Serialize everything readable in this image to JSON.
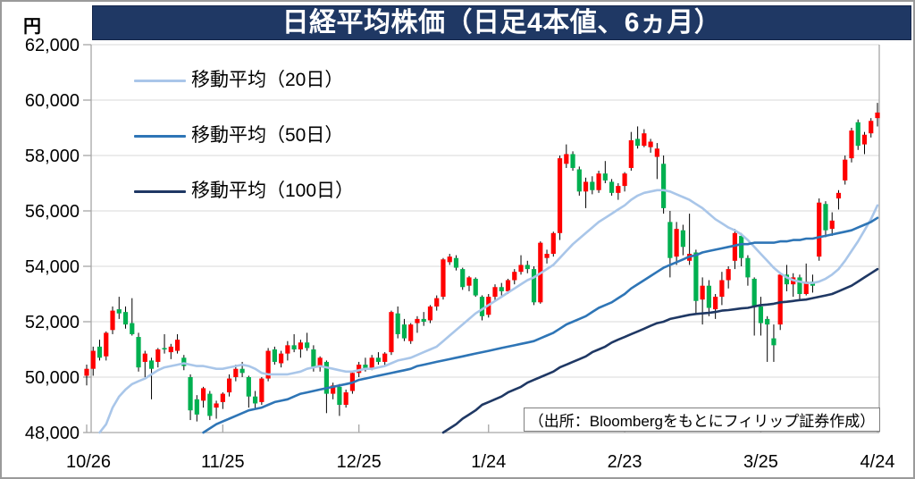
{
  "figure": {
    "title": "日経平均株価（日足4本値、6ヵ月）",
    "y_unit_label": "円",
    "source_note": "（出所：Bloombergをもとにフィリップ証券作成）"
  },
  "colors": {
    "title_bar_bg": "#1f3864",
    "title_text": "#ffffff",
    "up_candle": "#ff0000",
    "down_candle": "#00b050",
    "wick": "#000000",
    "gridline": "#d9d9d9",
    "axis": "#a6a6a6",
    "ma20": "#a9c6e9",
    "ma50": "#2e75b6",
    "ma100": "#1f3864"
  },
  "chart_data": {
    "type": "candlestick",
    "title": "日経平均株価（日足4本値、6ヵ月）",
    "y_unit": "円",
    "ylim": [
      48000,
      62000
    ],
    "grid": true,
    "up_color": "#ff0000",
    "down_color": "#00b050",
    "y_axis_ticks": [
      {
        "label": "62,000",
        "value": 62000
      },
      {
        "label": "60,000",
        "value": 60000
      },
      {
        "label": "58,000",
        "value": 58000
      },
      {
        "label": "56,000",
        "value": 56000
      },
      {
        "label": "54,000",
        "value": 54000
      },
      {
        "label": "52,000",
        "value": 52000
      },
      {
        "label": "50,000",
        "value": 50000
      },
      {
        "label": "48,000",
        "value": 48000
      }
    ],
    "x_axis_ticks": [
      {
        "label": "10/26",
        "i": 0
      },
      {
        "label": "11/25",
        "i": 21
      },
      {
        "label": "12/25",
        "i": 42
      },
      {
        "label": "1/24",
        "i": 62
      },
      {
        "label": "2/23",
        "i": 83
      },
      {
        "label": "3/25",
        "i": 104
      },
      {
        "label": "4/24",
        "i": 122
      }
    ],
    "moving_averages": [
      {
        "name": "移動平均（20日）",
        "window": 20,
        "color": "#a9c6e9",
        "key": "ma20"
      },
      {
        "name": "移動平均（50日）",
        "window": 50,
        "color": "#2e75b6",
        "key": "ma50"
      },
      {
        "name": "移動平均（100日）",
        "window": 100,
        "color": "#1f3864",
        "key": "ma100"
      }
    ],
    "candles": [
      [
        50050,
        50450,
        49700,
        50300
      ],
      [
        50300,
        51100,
        50050,
        50950
      ],
      [
        51100,
        51350,
        50600,
        50700
      ],
      [
        50750,
        51650,
        50600,
        51600
      ],
      [
        51700,
        52550,
        51550,
        52400
      ],
      [
        52450,
        52900,
        52100,
        52300
      ],
      [
        52350,
        52550,
        51750,
        51900
      ],
      [
        51950,
        52850,
        51500,
        51550
      ],
      [
        51450,
        51600,
        50200,
        50350
      ],
      [
        50550,
        50950,
        50000,
        50850
      ],
      [
        50600,
        50700,
        49200,
        50300
      ],
      [
        50550,
        51050,
        50350,
        51000
      ],
      [
        51050,
        51550,
        50850,
        51000
      ],
      [
        50900,
        51200,
        50650,
        51100
      ],
      [
        50950,
        51550,
        50850,
        51350
      ],
      [
        50700,
        50800,
        50250,
        50400
      ],
      [
        50000,
        50100,
        48450,
        48800
      ],
      [
        49200,
        49350,
        48400,
        48650
      ],
      [
        49150,
        49650,
        48900,
        49600
      ],
      [
        49400,
        49500,
        48450,
        48600
      ],
      [
        48900,
        49150,
        48500,
        49050
      ],
      [
        49100,
        49450,
        48850,
        49400
      ],
      [
        49450,
        50100,
        49300,
        49950
      ],
      [
        50000,
        50450,
        49850,
        50300
      ],
      [
        50300,
        50550,
        50000,
        50150
      ],
      [
        50000,
        50050,
        48900,
        49300
      ],
      [
        49300,
        49500,
        48850,
        49050
      ],
      [
        49100,
        50000,
        49000,
        49950
      ],
      [
        49950,
        51050,
        49850,
        50950
      ],
      [
        51000,
        51100,
        50450,
        50550
      ],
      [
        50500,
        50950,
        50350,
        50850
      ],
      [
        50850,
        51300,
        50600,
        51150
      ],
      [
        51150,
        51550,
        50900,
        51000
      ],
      [
        51000,
        51350,
        50700,
        51250
      ],
      [
        51250,
        51600,
        50950,
        51050
      ],
      [
        51000,
        51150,
        50200,
        50350
      ],
      [
        50350,
        50750,
        50200,
        50700
      ],
      [
        50550,
        50600,
        48700,
        49400
      ],
      [
        49400,
        49800,
        49200,
        49700
      ],
      [
        49650,
        49750,
        48600,
        49000
      ],
      [
        49000,
        49550,
        48900,
        49450
      ],
      [
        49500,
        50200,
        49400,
        50150
      ],
      [
        50150,
        50550,
        50000,
        50450
      ],
      [
        50450,
        50700,
        50200,
        50300
      ],
      [
        50300,
        50800,
        50250,
        50700
      ],
      [
        50700,
        50900,
        50450,
        50550
      ],
      [
        50550,
        50900,
        50400,
        50850
      ],
      [
        50900,
        52400,
        50800,
        52350
      ],
      [
        52300,
        52550,
        51400,
        51550
      ],
      [
        51900,
        52100,
        51300,
        51400
      ],
      [
        51300,
        51950,
        51200,
        51900
      ],
      [
        51950,
        52200,
        51600,
        52100
      ],
      [
        52100,
        52350,
        51850,
        52000
      ],
      [
        52050,
        52600,
        51950,
        52550
      ],
      [
        52550,
        52950,
        52400,
        52850
      ],
      [
        52900,
        54300,
        52800,
        54250
      ],
      [
        54150,
        54450,
        54050,
        54350
      ],
      [
        54300,
        54400,
        53850,
        53950
      ],
      [
        53900,
        53950,
        53150,
        53250
      ],
      [
        53300,
        53650,
        53100,
        53600
      ],
      [
        53550,
        53600,
        52900,
        52950
      ],
      [
        52900,
        52950,
        52050,
        52200
      ],
      [
        52250,
        53000,
        52150,
        52900
      ],
      [
        52900,
        53350,
        52750,
        53250
      ],
      [
        53250,
        53400,
        52950,
        53100
      ],
      [
        53100,
        53550,
        53000,
        53500
      ],
      [
        53500,
        53900,
        53350,
        53800
      ],
      [
        53800,
        54400,
        53700,
        54050
      ],
      [
        54050,
        54200,
        53750,
        53900
      ],
      [
        53900,
        54000,
        52600,
        52700
      ],
      [
        52700,
        54900,
        52650,
        54850
      ],
      [
        54300,
        54600,
        54100,
        54450
      ],
      [
        54450,
        55250,
        54350,
        55200
      ],
      [
        55200,
        58000,
        54950,
        57900
      ],
      [
        57700,
        58400,
        57550,
        58050
      ],
      [
        58050,
        58150,
        57450,
        57550
      ],
      [
        57500,
        57600,
        56550,
        56700
      ],
      [
        56700,
        57200,
        56100,
        57050
      ],
      [
        57050,
        57250,
        56600,
        56750
      ],
      [
        56750,
        57450,
        56650,
        57350
      ],
      [
        57350,
        57800,
        57000,
        57100
      ],
      [
        57050,
        57150,
        56550,
        56650
      ],
      [
        56650,
        57000,
        56400,
        56900
      ],
      [
        56900,
        57400,
        56700,
        57350
      ],
      [
        57550,
        58850,
        57450,
        58550
      ],
      [
        58600,
        59050,
        58250,
        58350
      ],
      [
        58350,
        58950,
        58300,
        58800
      ],
      [
        58300,
        58600,
        58100,
        58500
      ],
      [
        57950,
        58450,
        57150,
        58250
      ],
      [
        57700,
        58000,
        55900,
        56100
      ],
      [
        55600,
        56000,
        53600,
        54300
      ],
      [
        54350,
        55600,
        54050,
        55350
      ],
      [
        55300,
        55500,
        54400,
        54700
      ],
      [
        54200,
        55900,
        54050,
        54450
      ],
      [
        54500,
        54600,
        52300,
        52750
      ],
      [
        52800,
        53600,
        51900,
        53300
      ],
      [
        53300,
        53500,
        52200,
        52500
      ],
      [
        52450,
        53000,
        52100,
        52900
      ],
      [
        52900,
        53800,
        52600,
        53500
      ],
      [
        53500,
        54000,
        53200,
        53900
      ],
      [
        54200,
        55350,
        53900,
        55200
      ],
      [
        55100,
        55200,
        54000,
        54300
      ],
      [
        54300,
        54400,
        53300,
        53600
      ],
      [
        53550,
        53600,
        51500,
        52550
      ],
      [
        52550,
        52900,
        51500,
        51950
      ],
      [
        52100,
        52200,
        50550,
        51900
      ],
      [
        51400,
        51900,
        50550,
        51150
      ],
      [
        51900,
        53750,
        51700,
        53700
      ],
      [
        53700,
        54050,
        53100,
        53350
      ],
      [
        53350,
        53750,
        52900,
        53600
      ],
      [
        53600,
        53700,
        52750,
        53000
      ],
      [
        53000,
        54100,
        52950,
        53450
      ],
      [
        53450,
        53700,
        53050,
        53300
      ],
      [
        54350,
        56450,
        54200,
        56300
      ],
      [
        56250,
        56350,
        55050,
        55300
      ],
      [
        55350,
        55950,
        55100,
        55650
      ],
      [
        56450,
        56750,
        56050,
        56650
      ],
      [
        57100,
        58000,
        56950,
        57850
      ],
      [
        57900,
        59000,
        57750,
        58900
      ],
      [
        59200,
        59300,
        58200,
        58350
      ],
      [
        58400,
        58850,
        58050,
        58750
      ],
      [
        58800,
        59350,
        58650,
        59250
      ],
      [
        59350,
        59900,
        59050,
        59550
      ]
    ],
    "ma20": [
      null,
      null,
      48000,
      48300,
      48900,
      49300,
      49550,
      49750,
      49850,
      49950,
      50100,
      50250,
      50350,
      50400,
      50450,
      50500,
      50450,
      50400,
      50400,
      50350,
      50300,
      50300,
      50350,
      50400,
      50450,
      50400,
      50300,
      50150,
      50100,
      50100,
      50100,
      50100,
      50150,
      50200,
      50300,
      50350,
      50400,
      50350,
      50300,
      50250,
      50200,
      50200,
      50250,
      50300,
      50300,
      50350,
      50400,
      50500,
      50600,
      50650,
      50700,
      50800,
      50900,
      51000,
      51100,
      51300,
      51500,
      51700,
      51900,
      52100,
      52300,
      52450,
      52600,
      52750,
      52900,
      53050,
      53200,
      53350,
      53500,
      53600,
      53750,
      53900,
      54050,
      54300,
      54550,
      54800,
      55000,
      55200,
      55400,
      55600,
      55750,
      55900,
      56050,
      56200,
      56400,
      56550,
      56650,
      56700,
      56750,
      56750,
      56700,
      56600,
      56500,
      56400,
      56250,
      56100,
      55900,
      55700,
      55550,
      55400,
      55300,
      55150,
      54950,
      54700,
      54450,
      54200,
      53950,
      53750,
      53600,
      53500,
      53450,
      53400,
      53400,
      53450,
      53550,
      53700,
      53900,
      54200,
      54550,
      54900,
      55300,
      55700,
      56200
    ],
    "ma50": [
      null,
      null,
      null,
      null,
      null,
      null,
      null,
      null,
      null,
      null,
      null,
      null,
      null,
      null,
      null,
      null,
      null,
      null,
      48000,
      48150,
      48300,
      48400,
      48500,
      48600,
      48700,
      48800,
      48850,
      48900,
      49000,
      49100,
      49150,
      49200,
      49300,
      49400,
      49450,
      49500,
      49550,
      49600,
      49650,
      49700,
      49750,
      49800,
      49900,
      49950,
      50000,
      50050,
      50100,
      50150,
      50200,
      50250,
      50300,
      50400,
      50450,
      50500,
      50550,
      50600,
      50650,
      50700,
      50750,
      50800,
      50850,
      50900,
      50950,
      51000,
      51050,
      51100,
      51150,
      51200,
      51250,
      51300,
      51400,
      51500,
      51600,
      51750,
      51900,
      52000,
      52100,
      52200,
      52350,
      52500,
      52600,
      52700,
      52850,
      53000,
      53200,
      53350,
      53500,
      53650,
      53800,
      53950,
      54050,
      54150,
      54250,
      54350,
      54400,
      54500,
      54550,
      54600,
      54650,
      54700,
      54750,
      54800,
      54800,
      54850,
      54850,
      54850,
      54850,
      54900,
      54900,
      54950,
      54950,
      55000,
      55000,
      55050,
      55100,
      55150,
      55200,
      55250,
      55300,
      55400,
      55500,
      55600,
      55750
    ],
    "ma100": [
      null,
      null,
      null,
      null,
      null,
      null,
      null,
      null,
      null,
      null,
      null,
      null,
      null,
      null,
      null,
      null,
      null,
      null,
      null,
      null,
      null,
      null,
      null,
      null,
      null,
      null,
      null,
      null,
      null,
      null,
      null,
      null,
      null,
      null,
      null,
      null,
      null,
      null,
      null,
      null,
      null,
      null,
      null,
      null,
      null,
      null,
      null,
      null,
      null,
      null,
      null,
      null,
      null,
      null,
      null,
      48000,
      48150,
      48300,
      48500,
      48650,
      48800,
      49000,
      49100,
      49200,
      49300,
      49450,
      49550,
      49650,
      49800,
      49900,
      50000,
      50100,
      50200,
      50350,
      50450,
      50550,
      50650,
      50750,
      50900,
      51000,
      51100,
      51250,
      51350,
      51450,
      51550,
      51650,
      51750,
      51850,
      51950,
      52000,
      52100,
      52150,
      52200,
      52250,
      52280,
      52300,
      52320,
      52350,
      52400,
      52420,
      52450,
      52480,
      52500,
      52550,
      52600,
      52620,
      52650,
      52700,
      52720,
      52750,
      52780,
      52800,
      52850,
      52900,
      52950,
      53000,
      53100,
      53200,
      53300,
      53450,
      53600,
      53750,
      53900
    ]
  }
}
